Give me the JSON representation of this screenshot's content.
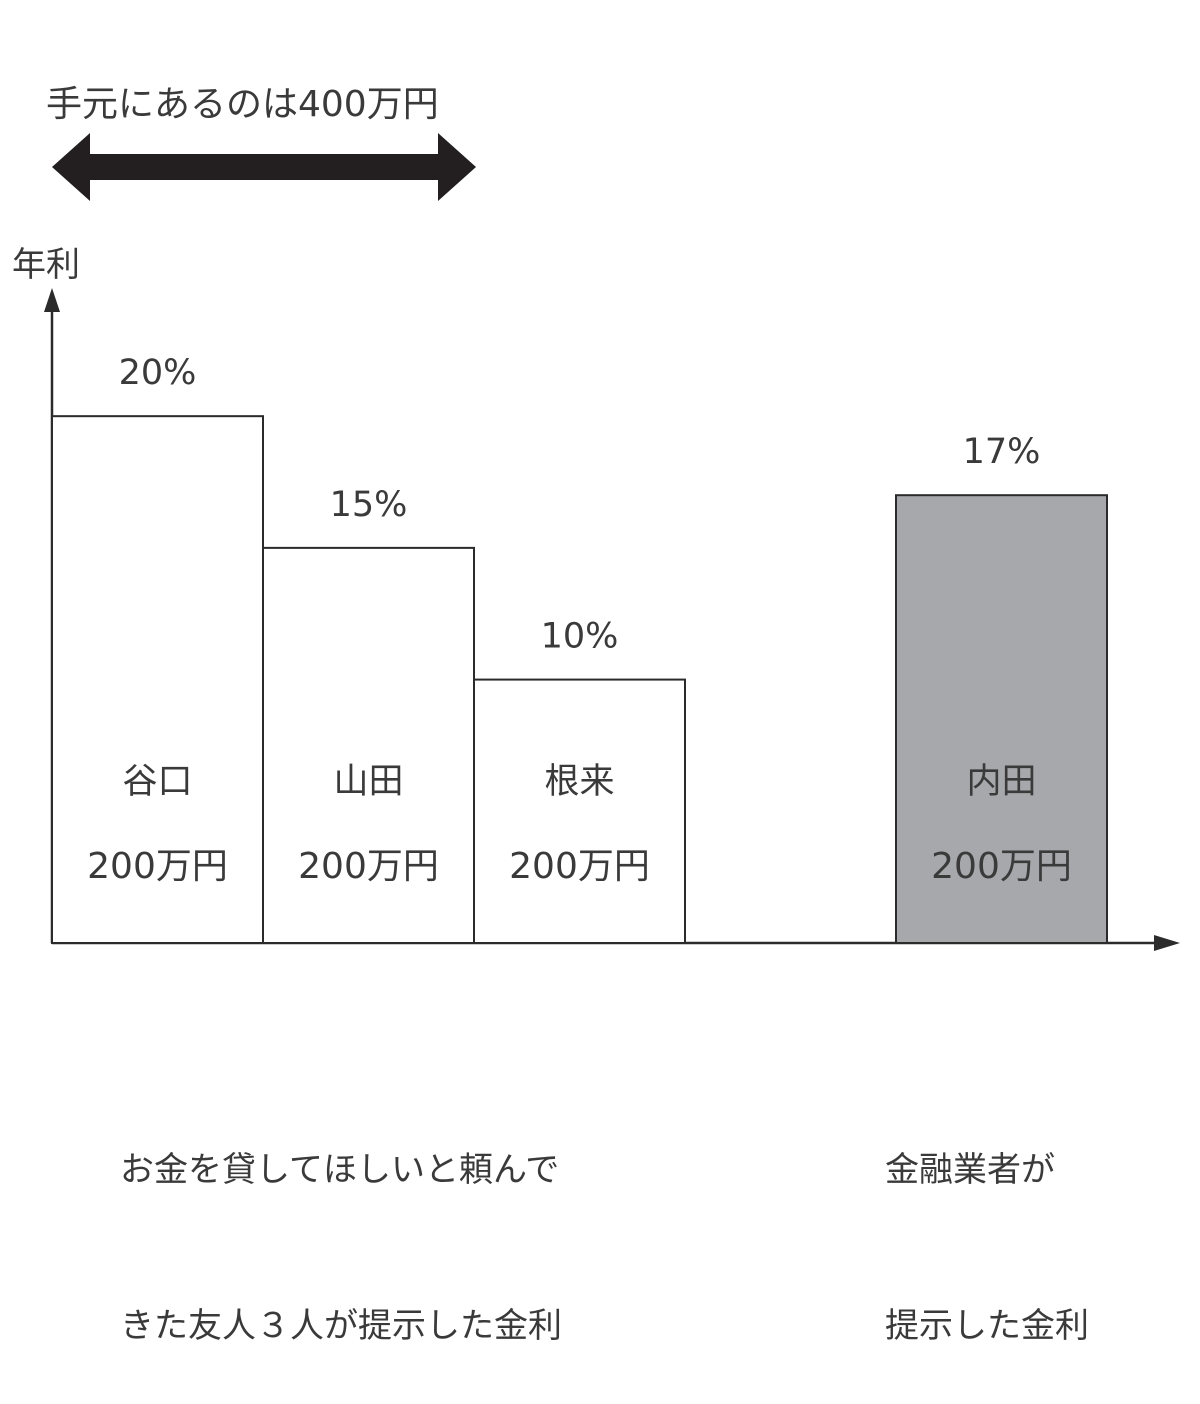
{
  "chart_data": {
    "type": "bar",
    "title": "",
    "ylabel": "年利",
    "ylim": [
      0,
      24.6
    ],
    "annotation": "手元にあるのは400万円",
    "categories": [
      "谷口",
      "山田",
      "根来",
      "内田"
    ],
    "values": [
      20,
      15,
      10,
      17
    ],
    "value_labels": [
      "20%",
      "15%",
      "10%",
      "17%"
    ],
    "amounts": [
      "200万円",
      "200万円",
      "200万円",
      "200万円"
    ],
    "groups": [
      {
        "members": [
          0,
          1,
          2
        ],
        "label_lines": [
          "お金を貸してほしいと頼んで",
          "きた友人３人が提示した金利"
        ]
      },
      {
        "members": [
          3
        ],
        "label_lines": [
          "金融業者が",
          "提示した金利"
        ]
      }
    ],
    "colors": {
      "friend_fill": "#ffffff",
      "lender_fill": "#a7a8ab",
      "stroke": "#2b2b2b",
      "arrow": "#231f20",
      "text": "#3a3a3a"
    }
  }
}
